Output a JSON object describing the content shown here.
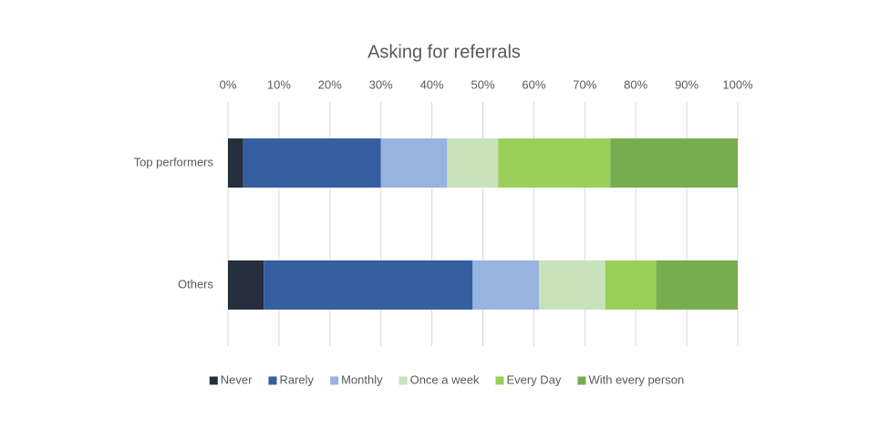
{
  "chart_data": {
    "type": "stacked-bar-horizontal",
    "title": "Asking for referrals",
    "categories": [
      "Top performers",
      "Others"
    ],
    "series": [
      {
        "name": "Never",
        "color": "#262f3d",
        "values": [
          3,
          7
        ]
      },
      {
        "name": "Rarely",
        "color": "#355fa0",
        "values": [
          27,
          41
        ]
      },
      {
        "name": "Monthly",
        "color": "#98b3e0",
        "values": [
          13,
          13
        ]
      },
      {
        "name": "Once a week",
        "color": "#c9e2bb",
        "values": [
          10,
          13
        ]
      },
      {
        "name": "Every Day",
        "color": "#99d05a",
        "values": [
          22,
          10
        ]
      },
      {
        "name": "With every person",
        "color": "#76ad4f",
        "values": [
          25,
          16
        ]
      }
    ],
    "xlim": [
      0,
      100
    ],
    "xticks": [
      {
        "value": 0,
        "label": "0%"
      },
      {
        "value": 10,
        "label": "10%"
      },
      {
        "value": 20,
        "label": "20%"
      },
      {
        "value": 30,
        "label": "30%"
      },
      {
        "value": 40,
        "label": "40%"
      },
      {
        "value": 50,
        "label": "50%"
      },
      {
        "value": 60,
        "label": "60%"
      },
      {
        "value": 70,
        "label": "70%"
      },
      {
        "value": 80,
        "label": "80%"
      },
      {
        "value": 90,
        "label": "90%"
      },
      {
        "value": 100,
        "label": "100%"
      }
    ],
    "grid": true,
    "legend": "bottom"
  }
}
